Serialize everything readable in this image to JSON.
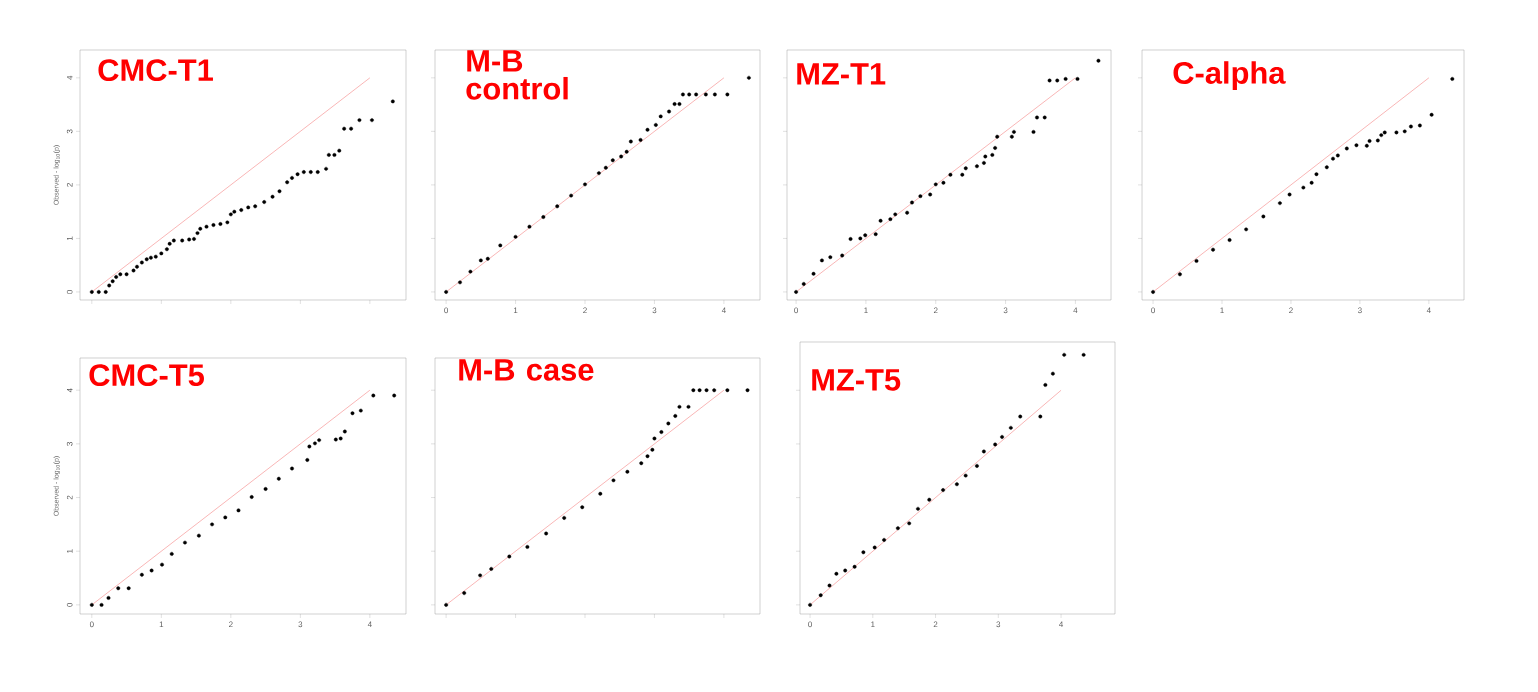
{
  "chart_data": [
    {
      "type": "scatter",
      "title": "CMC-T1",
      "ylabel": "Observed - log$_{10}$(p)",
      "xlim": [
        -0.17,
        4.52
      ],
      "ylim": [
        -0.15,
        4.52
      ],
      "xticks": [
        0,
        1,
        2,
        3,
        4
      ],
      "yticks": [
        0,
        1,
        2,
        3,
        4
      ],
      "tick_labels": "y",
      "series": [
        {
          "marker": "circle",
          "color": "#000000",
          "x": [
            0,
            0.1,
            0.2,
            0.25,
            0.3,
            0.35,
            0.41,
            0.5,
            0.6,
            0.65,
            0.72,
            0.79,
            0.85,
            0.92,
            1.0,
            1.08,
            1.12,
            1.18,
            1.3,
            1.4,
            1.47,
            1.52,
            1.56,
            1.65,
            1.75,
            1.85,
            1.95,
            2.0,
            2.05,
            2.15,
            2.25,
            2.35,
            2.48,
            2.6,
            2.7,
            2.81,
            2.88,
            2.96,
            3.05,
            3.15,
            3.25,
            3.37,
            3.41,
            3.49,
            3.56,
            3.63,
            3.73,
            3.85,
            4.03,
            4.33
          ],
          "values": [
            0,
            0,
            0,
            0.12,
            0.2,
            0.28,
            0.33,
            0.33,
            0.4,
            0.47,
            0.55,
            0.61,
            0.64,
            0.66,
            0.72,
            0.8,
            0.9,
            0.96,
            0.96,
            0.98,
            0.99,
            1.1,
            1.18,
            1.22,
            1.25,
            1.27,
            1.3,
            1.45,
            1.5,
            1.53,
            1.58,
            1.6,
            1.68,
            1.78,
            1.88,
            2.05,
            2.13,
            2.2,
            2.24,
            2.24,
            2.24,
            2.3,
            2.56,
            2.56,
            2.64,
            3.05,
            3.05,
            3.21,
            3.21,
            3.56
          ]
        },
        {
          "type": "line",
          "color": "#f7a3a3",
          "x": [
            0,
            4
          ],
          "values": [
            0,
            4
          ]
        }
      ]
    },
    {
      "type": "scatter",
      "title": "M-B control",
      "xlim": [
        -0.16,
        4.52
      ],
      "ylim": [
        -0.15,
        4.52
      ],
      "xticks": [
        0,
        1,
        2,
        3,
        4
      ],
      "yticks": [
        0,
        1,
        2,
        3,
        4
      ],
      "tick_labels": "x",
      "series": [
        {
          "marker": "circle",
          "color": "#000000",
          "x": [
            0,
            0.2,
            0.35,
            0.5,
            0.6,
            0.78,
            1.0,
            1.2,
            1.4,
            1.6,
            1.8,
            2.0,
            2.2,
            2.3,
            2.4,
            2.52,
            2.6,
            2.66,
            2.8,
            2.9,
            3.02,
            3.09,
            3.21,
            3.29,
            3.36,
            3.41,
            3.5,
            3.6,
            3.74,
            3.87,
            4.05,
            4.36
          ],
          "values": [
            0,
            0.18,
            0.38,
            0.59,
            0.62,
            0.87,
            1.03,
            1.22,
            1.4,
            1.6,
            1.8,
            2.01,
            2.22,
            2.32,
            2.46,
            2.53,
            2.62,
            2.81,
            2.84,
            3.03,
            3.12,
            3.28,
            3.37,
            3.51,
            3.51,
            3.69,
            3.69,
            3.69,
            3.69,
            3.69,
            3.69,
            4.0
          ]
        },
        {
          "type": "line",
          "color": "#f7a3a3",
          "x": [
            0,
            4
          ],
          "values": [
            0,
            4
          ]
        }
      ]
    },
    {
      "type": "scatter",
      "title": "MZ-T1",
      "xlim": [
        -0.13,
        4.51
      ],
      "ylim": [
        -0.15,
        4.52
      ],
      "xticks": [
        0,
        1,
        2,
        3,
        4
      ],
      "yticks": [
        0,
        1,
        2,
        3,
        4
      ],
      "tick_labels": "x",
      "series": [
        {
          "marker": "circle",
          "color": "#000000",
          "x": [
            0,
            0.11,
            0.25,
            0.37,
            0.49,
            0.66,
            0.78,
            0.92,
            0.99,
            1.14,
            1.21,
            1.35,
            1.42,
            1.59,
            1.66,
            1.78,
            1.92,
            2.0,
            2.11,
            2.21,
            2.38,
            2.43,
            2.59,
            2.69,
            2.71,
            2.81,
            2.85,
            2.88,
            3.09,
            3.12,
            3.4,
            3.45,
            3.56,
            3.63,
            3.74,
            3.86,
            4.03,
            4.33
          ],
          "values": [
            0,
            0.15,
            0.34,
            0.59,
            0.65,
            0.68,
            0.99,
            1.0,
            1.06,
            1.08,
            1.33,
            1.36,
            1.45,
            1.48,
            1.67,
            1.79,
            1.82,
            2.01,
            2.04,
            2.19,
            2.19,
            2.31,
            2.35,
            2.41,
            2.53,
            2.56,
            2.69,
            2.9,
            2.9,
            2.99,
            2.99,
            3.26,
            3.26,
            3.95,
            3.95,
            3.98,
            3.98,
            4.32
          ]
        },
        {
          "type": "line",
          "color": "#f7a3a3",
          "x": [
            0,
            4
          ],
          "values": [
            0,
            4
          ]
        }
      ]
    },
    {
      "type": "scatter",
      "title": "C-alpha",
      "xlim": [
        -0.16,
        4.51
      ],
      "ylim": [
        -0.15,
        4.52
      ],
      "xticks": [
        0,
        1,
        2,
        3,
        4
      ],
      "yticks": [
        0,
        1,
        2,
        3,
        4
      ],
      "tick_labels": "x",
      "series": [
        {
          "marker": "circle",
          "color": "#000000",
          "x": [
            0,
            0.39,
            0.63,
            0.87,
            1.11,
            1.35,
            1.6,
            1.84,
            1.98,
            2.18,
            2.3,
            2.37,
            2.52,
            2.61,
            2.68,
            2.81,
            2.95,
            3.1,
            3.14,
            3.26,
            3.31,
            3.36,
            3.53,
            3.65,
            3.74,
            3.87,
            4.04,
            4.34
          ],
          "values": [
            0,
            0.33,
            0.58,
            0.79,
            0.97,
            1.17,
            1.41,
            1.66,
            1.82,
            1.95,
            2.04,
            2.2,
            2.33,
            2.49,
            2.55,
            2.68,
            2.74,
            2.73,
            2.82,
            2.83,
            2.93,
            2.98,
            2.98,
            3.0,
            3.09,
            3.11,
            3.31,
            3.98
          ]
        },
        {
          "type": "line",
          "color": "#f7a3a3",
          "x": [
            0,
            4
          ],
          "values": [
            0,
            4
          ]
        }
      ]
    },
    {
      "type": "scatter",
      "title": "CMC-T5",
      "ylabel": "Observed - log$_{10}$(p)",
      "xlim": [
        -0.17,
        4.52
      ],
      "ylim": [
        -0.17,
        4.6
      ],
      "xticks": [
        0,
        1,
        2,
        3,
        4
      ],
      "yticks": [
        0,
        1,
        2,
        3,
        4
      ],
      "series": [
        {
          "marker": "circle",
          "color": "#000000",
          "x": [
            0,
            0.14,
            0.24,
            0.38,
            0.53,
            0.72,
            0.86,
            1.01,
            1.15,
            1.34,
            1.54,
            1.73,
            1.92,
            2.11,
            2.3,
            2.5,
            2.69,
            2.88,
            3.1,
            3.13,
            3.21,
            3.27,
            3.51,
            3.58,
            3.64,
            3.75,
            3.87,
            4.05,
            4.35
          ],
          "values": [
            0,
            0,
            0.13,
            0.31,
            0.31,
            0.56,
            0.64,
            0.75,
            0.95,
            1.16,
            1.29,
            1.5,
            1.63,
            1.76,
            2.01,
            2.16,
            2.35,
            2.54,
            2.7,
            2.95,
            3.01,
            3.07,
            3.08,
            3.1,
            3.23,
            3.57,
            3.62,
            3.9,
            3.9
          ]
        },
        {
          "type": "line",
          "color": "#f7a3a3",
          "x": [
            0,
            4
          ],
          "values": [
            0,
            4
          ]
        }
      ]
    },
    {
      "type": "scatter",
      "title": "M-B case",
      "xlim": [
        -0.16,
        4.52
      ],
      "ylim": [
        -0.17,
        4.6
      ],
      "xticks": [
        0,
        1,
        2,
        3,
        4
      ],
      "yticks": [
        0,
        1,
        2,
        3,
        4
      ],
      "tick_labels": false,
      "series": [
        {
          "marker": "circle",
          "color": "#000000",
          "x": [
            0,
            0.26,
            0.49,
            0.65,
            0.91,
            1.17,
            1.44,
            1.7,
            1.96,
            2.22,
            2.41,
            2.61,
            2.81,
            2.9,
            2.97,
            3.0,
            3.1,
            3.2,
            3.3,
            3.36,
            3.49,
            3.56,
            3.65,
            3.75,
            3.86,
            4.05,
            4.34
          ],
          "values": [
            0,
            0.22,
            0.55,
            0.67,
            0.9,
            1.08,
            1.33,
            1.62,
            1.82,
            2.07,
            2.32,
            2.48,
            2.64,
            2.77,
            2.89,
            3.1,
            3.22,
            3.38,
            3.52,
            3.69,
            3.69,
            4.0,
            4.0,
            4.0,
            4.0,
            4.0,
            4.0
          ]
        },
        {
          "type": "line",
          "color": "#f7a3a3",
          "x": [
            0,
            4
          ],
          "values": [
            0,
            4
          ]
        }
      ]
    },
    {
      "type": "scatter",
      "title": "MZ-T5",
      "xlim": [
        -0.16,
        4.86
      ],
      "ylim": [
        -0.17,
        4.9
      ],
      "xticks": [
        0,
        1,
        2,
        3,
        4
      ],
      "yticks": [
        0,
        1,
        2,
        3,
        4
      ],
      "tick_labels": "x",
      "series": [
        {
          "marker": "circle",
          "color": "#000000",
          "x": [
            0,
            0.17,
            0.31,
            0.42,
            0.56,
            0.71,
            0.85,
            1.03,
            1.18,
            1.4,
            1.58,
            1.72,
            1.9,
            2.12,
            2.34,
            2.48,
            2.66,
            2.77,
            2.95,
            3.06,
            3.2,
            3.35,
            3.67,
            3.75,
            3.87,
            4.05,
            4.36
          ],
          "values": [
            0,
            0.18,
            0.36,
            0.58,
            0.64,
            0.71,
            0.98,
            1.07,
            1.21,
            1.43,
            1.52,
            1.79,
            1.96,
            2.14,
            2.25,
            2.41,
            2.59,
            2.86,
            2.99,
            3.13,
            3.3,
            3.51,
            3.51,
            4.1,
            4.31,
            4.66,
            4.66
          ]
        },
        {
          "type": "line",
          "color": "#f7a3a3",
          "x": [
            0,
            4
          ],
          "values": [
            0,
            4
          ]
        }
      ]
    }
  ]
}
